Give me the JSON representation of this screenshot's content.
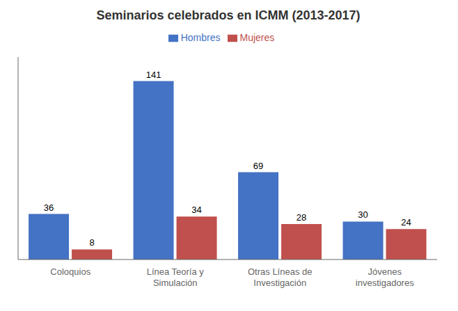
{
  "chart_data": {
    "type": "bar",
    "title": "Seminarios celebrados en ICMM (2013-2017)",
    "categories": [
      "Coloquios",
      "Línea Teoría y\nSimulación",
      "Otras Líneas de\nInvestigación",
      "Jóvenes\ninvestigadores"
    ],
    "series": [
      {
        "name": "Hombres",
        "color": "#4472C4",
        "values": [
          36,
          141,
          69,
          30
        ]
      },
      {
        "name": "Mujeres",
        "color": "#C0504D",
        "values": [
          8,
          34,
          28,
          24
        ]
      }
    ],
    "ylim": [
      0,
      160
    ],
    "data_labels": true,
    "tick_labels": "x",
    "grid": false
  }
}
